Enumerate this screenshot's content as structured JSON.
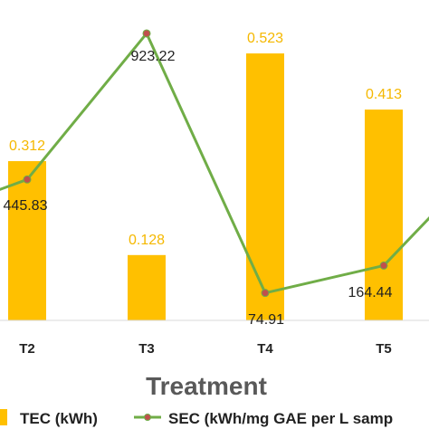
{
  "chart_data": {
    "type": "bar",
    "categories": [
      "T2",
      "T3",
      "T4",
      "T5"
    ],
    "xlabel": "Treatment",
    "series": [
      {
        "name": "TEC (kWh)",
        "type": "bar",
        "values": [
          0.312,
          0.128,
          0.523,
          0.413
        ],
        "labels": [
          "0.312",
          "0.128",
          "0.523",
          "0.413"
        ],
        "color": "#ffc000"
      },
      {
        "name": "SEC (kWh/mg GAE per L samp",
        "type": "line",
        "values": [
          445.83,
          923.22,
          74.91,
          164.44
        ],
        "labels": [
          "445.83",
          "923.22",
          "74.91",
          "164.44"
        ],
        "color": "#70ad47",
        "marker_color": "#c0504d",
        "trailing_value": 350
      }
    ],
    "legend_position": "bottom",
    "grid": false
  }
}
